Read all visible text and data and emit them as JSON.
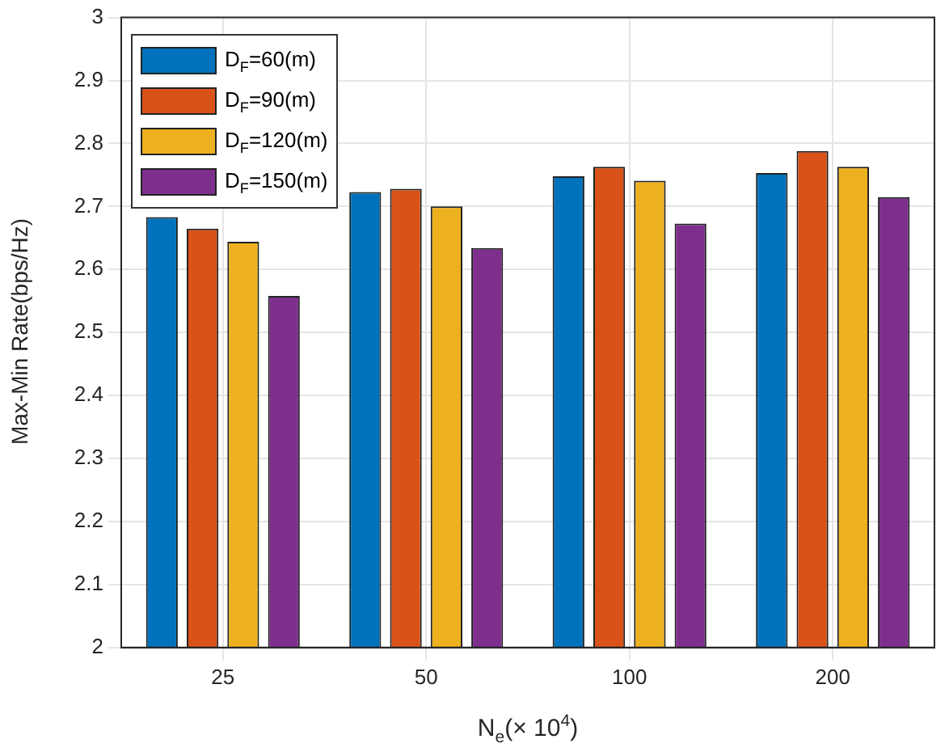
{
  "chart_data": {
    "type": "bar",
    "xlabel": "N$_{e}$(× 10$^{4}$)",
    "ylabel": "Max-Min Rate(bps/Hz)",
    "categories": [
      "25",
      "50",
      "100",
      "200"
    ],
    "series": [
      {
        "name": "D$_{F}$=60(m)",
        "color": "#0072bd",
        "values": [
          2.683,
          2.723,
          2.748,
          2.753
        ]
      },
      {
        "name": "D$_{F}$=90(m)",
        "color": "#d95319",
        "values": [
          2.665,
          2.728,
          2.763,
          2.788
        ]
      },
      {
        "name": "D$_{F}$=120(m)",
        "color": "#edb120",
        "values": [
          2.644,
          2.7,
          2.741,
          2.763
        ]
      },
      {
        "name": "D$_{F}$=150(m)",
        "color": "#7e2f8e",
        "values": [
          2.558,
          2.634,
          2.673,
          2.715
        ]
      }
    ],
    "ylim": [
      2,
      3
    ],
    "yticks": [
      2,
      2.1,
      2.2,
      2.3,
      2.4,
      2.5,
      2.6,
      2.7,
      2.8,
      2.9,
      3
    ],
    "grid": true,
    "legend": "top left"
  }
}
